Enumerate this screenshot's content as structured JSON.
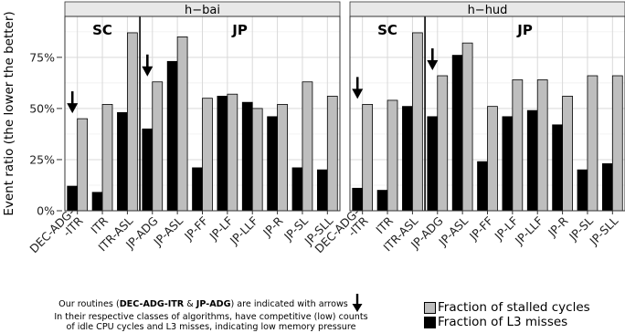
{
  "chart_data": {
    "type": "bar",
    "ylabel": "Event ratio (the lower the better)",
    "ylim": [
      0,
      0.95
    ],
    "yticks": [
      {
        "value": 0,
        "label": "0%"
      },
      {
        "value": 0.25,
        "label": "25%"
      },
      {
        "value": 0.5,
        "label": "50%"
      },
      {
        "value": 0.75,
        "label": "75%"
      }
    ],
    "grid": true,
    "legend_position": "bottom-right",
    "categories": [
      "DEC-ADG-\n-ITR",
      "ITR",
      "ITR-ASL",
      "JP-ADG",
      "JP-ASL",
      "JP-FF",
      "JP-LF",
      "JP-LLF",
      "JP-R",
      "JP-SL",
      "JP-SLL"
    ],
    "group_labels": [
      "SC",
      "JP"
    ],
    "group_split_after_index": 2,
    "arrow_categories": [
      0,
      3
    ],
    "series_styles": [
      {
        "color": "#000000"
      },
      {
        "color": "#bebebe"
      }
    ],
    "panels": [
      {
        "title": "h−bai",
        "series": [
          {
            "values": [
              0.12,
              0.09,
              0.48,
              0.4,
              0.73,
              0.21,
              0.56,
              0.53,
              0.46,
              0.21,
              0.2
            ]
          },
          {
            "values": [
              0.45,
              0.52,
              0.87,
              0.63,
              0.85,
              0.55,
              0.57,
              0.5,
              0.52,
              0.63,
              0.56
            ]
          }
        ]
      },
      {
        "title": "h−hud",
        "series": [
          {
            "values": [
              0.11,
              0.1,
              0.51,
              0.46,
              0.76,
              0.24,
              0.46,
              0.49,
              0.42,
              0.2,
              0.23
            ]
          },
          {
            "values": [
              0.52,
              0.54,
              0.87,
              0.66,
              0.82,
              0.51,
              0.64,
              0.64,
              0.56,
              0.66,
              0.66
            ]
          }
        ]
      }
    ],
    "legend": [
      {
        "label": "Fraction of stalled cycles",
        "color": "#bebebe"
      },
      {
        "label": "Fraction of L3 misses",
        "color": "#000000"
      }
    ]
  },
  "caption": {
    "line1_pre": "Our routines (",
    "line1_b1": "DEC-ADG-ITR",
    "line1_mid": " & ",
    "line1_b2": "JP-ADG",
    "line1_post": ") are indicated with arrows",
    "line2": "In their respective classes of algorithms, have competitive (low) counts",
    "line3": "of idle CPU cycles and L3 misses, indicating low memory pressure"
  }
}
